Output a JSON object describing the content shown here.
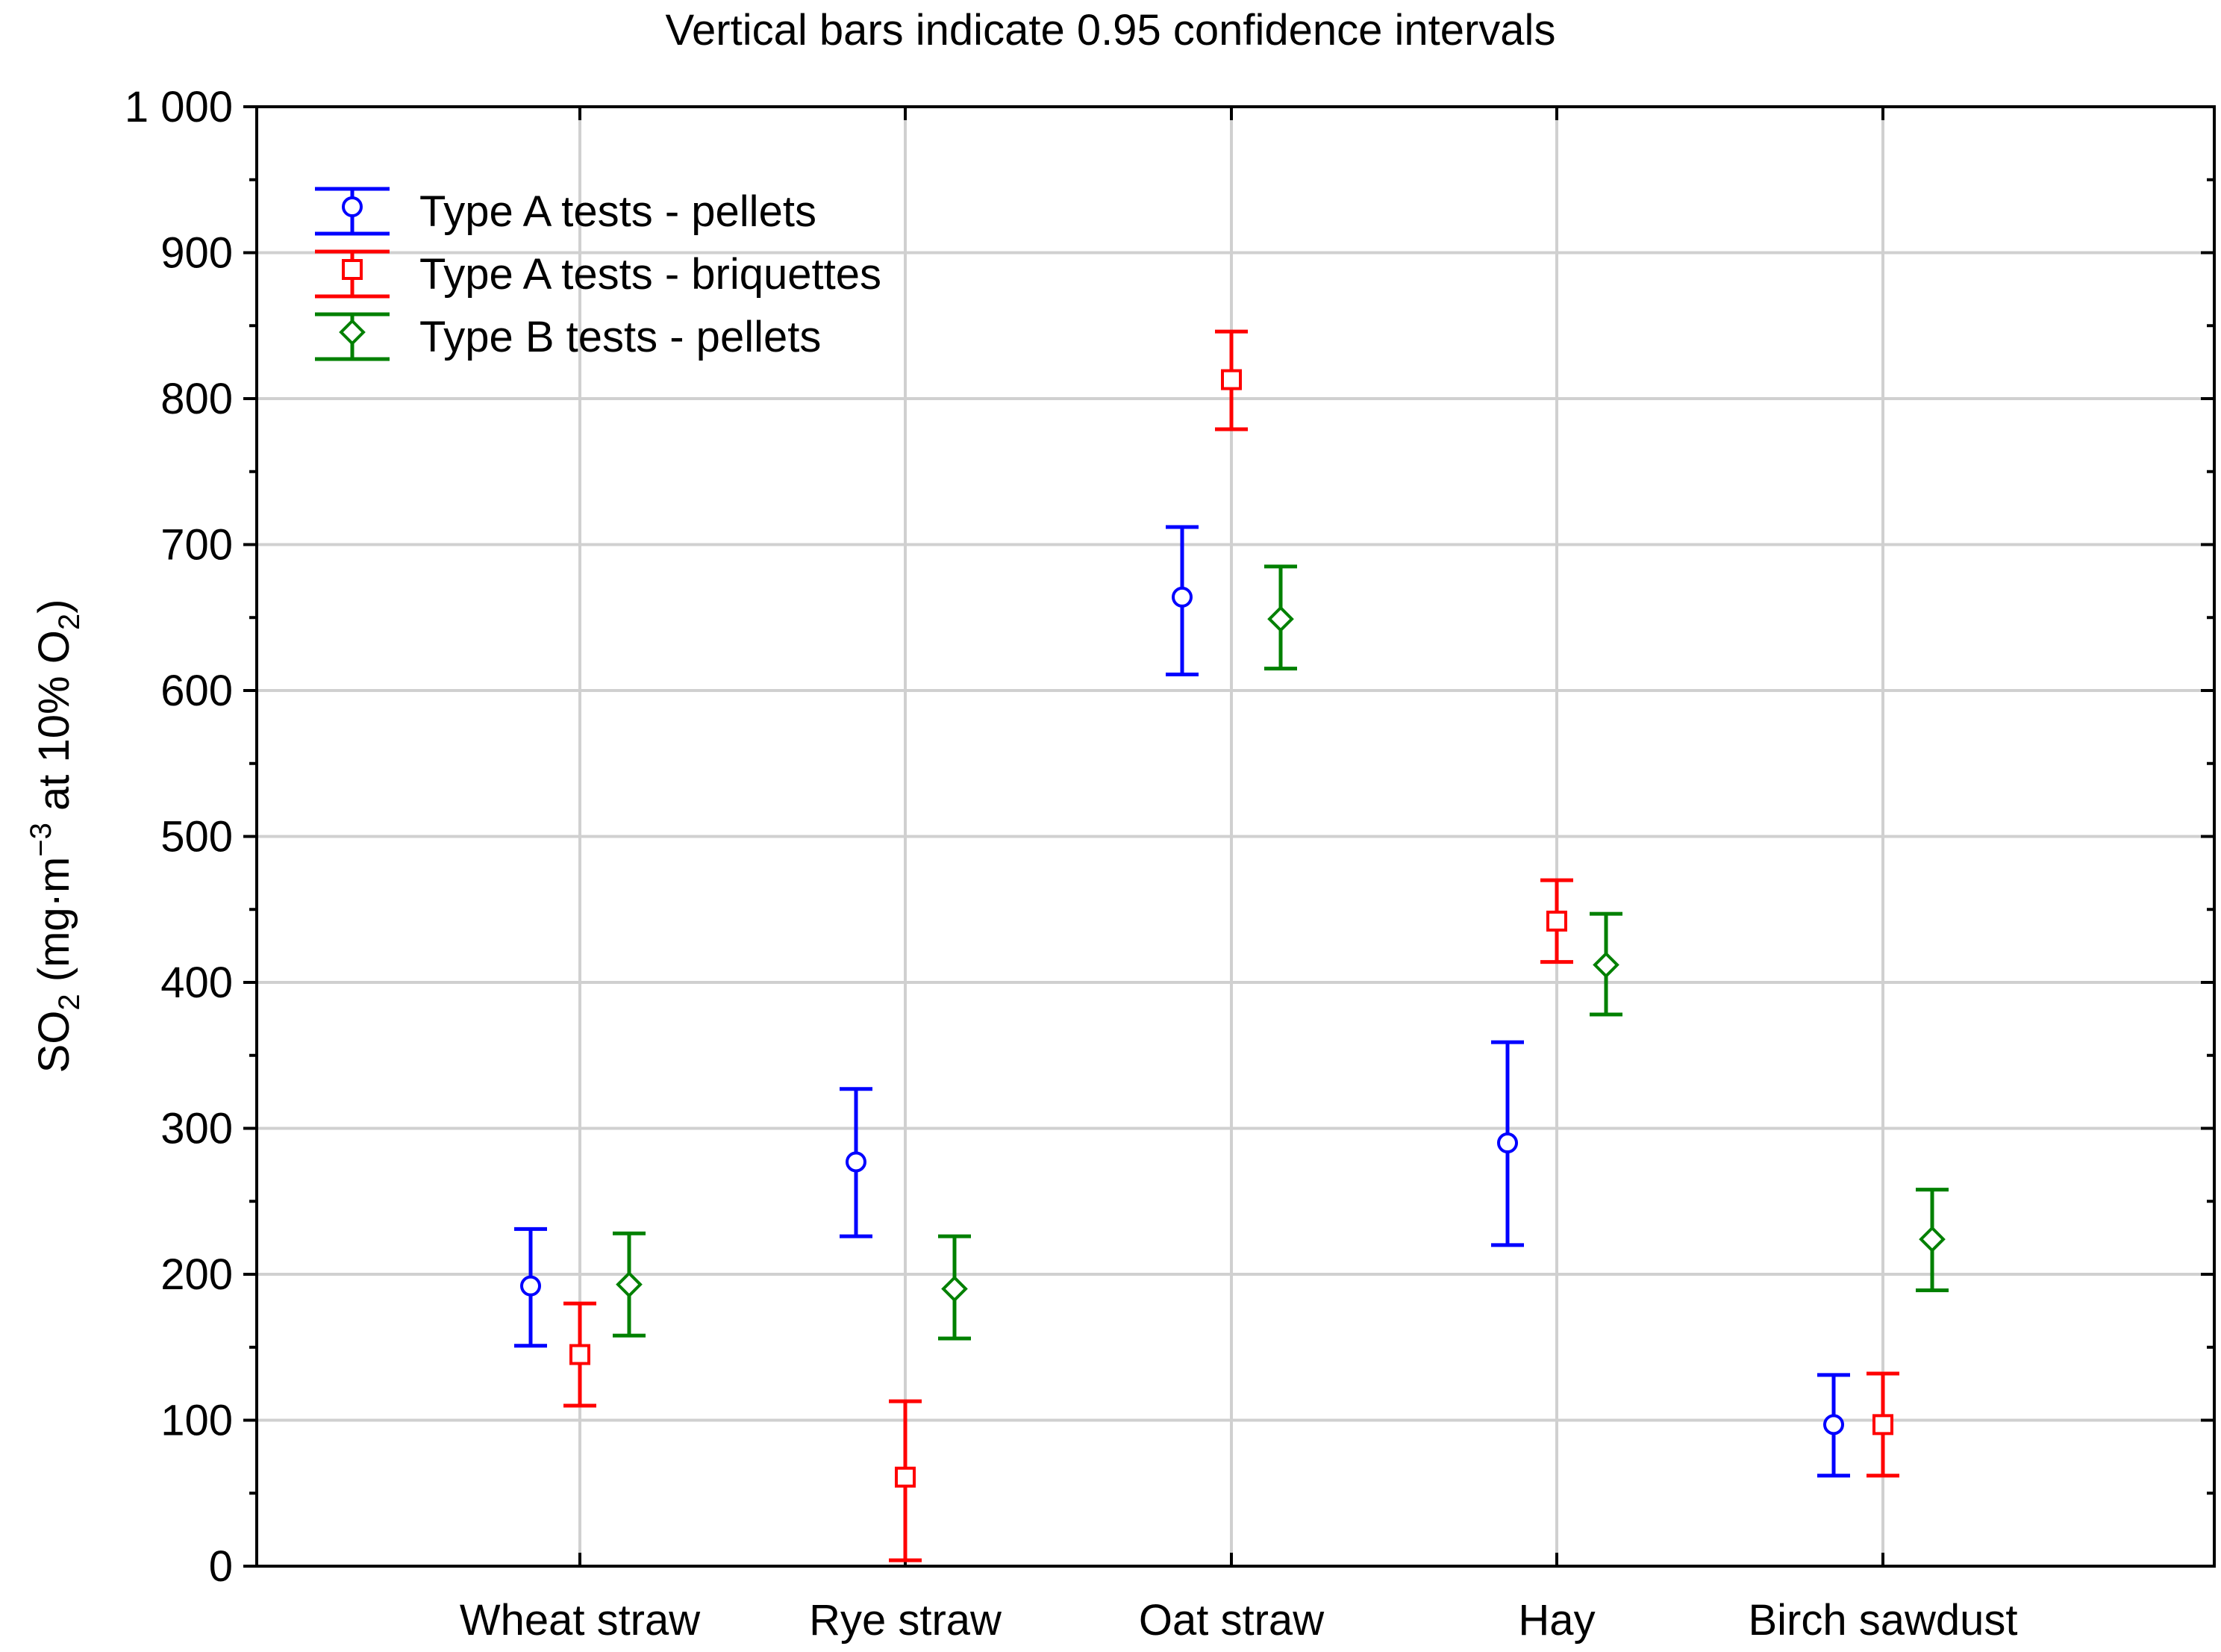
{
  "chart_data": {
    "type": "scatter",
    "subtitle": "Vertical bars indicate 0.95 confidence intervals",
    "ylabel": {
      "prefix": "SO",
      "sub1": "2",
      "mid": " (mg·m",
      "sup": "−3",
      "mid2": " at 10% O",
      "sub2": "2",
      "suffix": ")"
    },
    "ylim": [
      0,
      1000
    ],
    "yticks": [
      0,
      100,
      200,
      300,
      400,
      500,
      600,
      700,
      800,
      900,
      1000
    ],
    "ytick_labels": [
      "0",
      "100",
      "200",
      "300",
      "400",
      "500",
      "600",
      "700",
      "800",
      "900",
      "1 000"
    ],
    "categories": [
      "Wheat straw",
      "Rye straw",
      "Oat straw",
      "Hay",
      "Birch sawdust"
    ],
    "grid": true,
    "legend_position": "top-left",
    "series": [
      {
        "name": "Type A tests - pellets",
        "color": "#0000ff",
        "marker": "circle",
        "values": [
          192,
          277,
          664,
          290,
          97
        ],
        "lower": [
          151,
          226,
          611,
          220,
          62
        ],
        "upper": [
          231,
          327,
          712,
          359,
          131
        ]
      },
      {
        "name": "Type A tests - briquettes",
        "color": "#ff0000",
        "marker": "square",
        "values": [
          145,
          61,
          813,
          442,
          97
        ],
        "lower": [
          110,
          4,
          779,
          414,
          62
        ],
        "upper": [
          180,
          113,
          846,
          470,
          132
        ]
      },
      {
        "name": "Type B tests - pellets",
        "color": "#008000",
        "marker": "diamond",
        "values": [
          193,
          190,
          649,
          412,
          224
        ],
        "lower": [
          158,
          156,
          615,
          378,
          189
        ],
        "upper": [
          228,
          226,
          685,
          447,
          258
        ]
      }
    ]
  }
}
